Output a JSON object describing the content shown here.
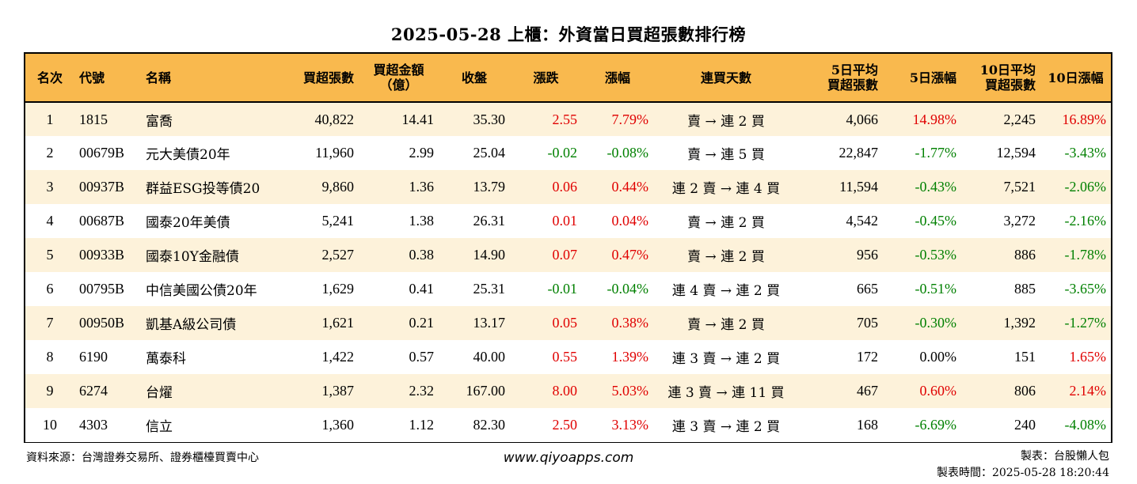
{
  "title": "2025-05-28 上櫃：外資當日買超張數排行榜",
  "colors": {
    "header_bg": "#F9B94E",
    "stripe_bg": "#FDF2DA",
    "up": "#E00000",
    "down": "#008000"
  },
  "columns": [
    {
      "key": "rank",
      "line1": "名次",
      "line2": ""
    },
    {
      "key": "code",
      "line1": "代號",
      "line2": ""
    },
    {
      "key": "name",
      "line1": "名稱",
      "line2": ""
    },
    {
      "key": "net_buy_lots",
      "line1": "買超張數",
      "line2": ""
    },
    {
      "key": "net_buy_amount",
      "line1": "買超金額",
      "line2": "（億）"
    },
    {
      "key": "close",
      "line1": "收盤",
      "line2": ""
    },
    {
      "key": "change",
      "line1": "漲跌",
      "line2": ""
    },
    {
      "key": "change_pct",
      "line1": "漲幅",
      "line2": ""
    },
    {
      "key": "streak",
      "line1": "連買天數",
      "line2": ""
    },
    {
      "key": "avg5_lots",
      "line1": "5日平均",
      "line2": "買超張數"
    },
    {
      "key": "pct5",
      "line1": "5日漲幅",
      "line2": ""
    },
    {
      "key": "avg10_lots",
      "line1": "10日平均",
      "line2": "買超張數"
    },
    {
      "key": "pct10",
      "line1": "10日漲幅",
      "line2": ""
    }
  ],
  "rows": [
    {
      "rank": "1",
      "code": "1815",
      "name": "富喬",
      "net_buy_lots": "40,822",
      "net_buy_amount": "14.41",
      "close": "35.30",
      "change": "2.55",
      "change_pct": "7.79%",
      "streak": "賣 → 連 2 買",
      "avg5_lots": "4,066",
      "pct5": "14.98%",
      "avg10_lots": "2,245",
      "pct10": "16.89%"
    },
    {
      "rank": "2",
      "code": "00679B",
      "name": "元大美債20年",
      "net_buy_lots": "11,960",
      "net_buy_amount": "2.99",
      "close": "25.04",
      "change": "-0.02",
      "change_pct": "-0.08%",
      "streak": "賣 → 連 5 買",
      "avg5_lots": "22,847",
      "pct5": "-1.77%",
      "avg10_lots": "12,594",
      "pct10": "-3.43%"
    },
    {
      "rank": "3",
      "code": "00937B",
      "name": "群益ESG投等債20",
      "net_buy_lots": "9,860",
      "net_buy_amount": "1.36",
      "close": "13.79",
      "change": "0.06",
      "change_pct": "0.44%",
      "streak": "連 2 賣 → 連 4 買",
      "avg5_lots": "11,594",
      "pct5": "-0.43%",
      "avg10_lots": "7,521",
      "pct10": "-2.06%"
    },
    {
      "rank": "4",
      "code": "00687B",
      "name": "國泰20年美債",
      "net_buy_lots": "5,241",
      "net_buy_amount": "1.38",
      "close": "26.31",
      "change": "0.01",
      "change_pct": "0.04%",
      "streak": "賣 → 連 2 買",
      "avg5_lots": "4,542",
      "pct5": "-0.45%",
      "avg10_lots": "3,272",
      "pct10": "-2.16%"
    },
    {
      "rank": "5",
      "code": "00933B",
      "name": "國泰10Y金融債",
      "net_buy_lots": "2,527",
      "net_buy_amount": "0.38",
      "close": "14.90",
      "change": "0.07",
      "change_pct": "0.47%",
      "streak": "賣 → 連 2 買",
      "avg5_lots": "956",
      "pct5": "-0.53%",
      "avg10_lots": "886",
      "pct10": "-1.78%"
    },
    {
      "rank": "6",
      "code": "00795B",
      "name": "中信美國公債20年",
      "net_buy_lots": "1,629",
      "net_buy_amount": "0.41",
      "close": "25.31",
      "change": "-0.01",
      "change_pct": "-0.04%",
      "streak": "連 4 賣 → 連 2 買",
      "avg5_lots": "665",
      "pct5": "-0.51%",
      "avg10_lots": "885",
      "pct10": "-3.65%"
    },
    {
      "rank": "7",
      "code": "00950B",
      "name": "凱基A級公司債",
      "net_buy_lots": "1,621",
      "net_buy_amount": "0.21",
      "close": "13.17",
      "change": "0.05",
      "change_pct": "0.38%",
      "streak": "賣 → 連 2 買",
      "avg5_lots": "705",
      "pct5": "-0.30%",
      "avg10_lots": "1,392",
      "pct10": "-1.27%"
    },
    {
      "rank": "8",
      "code": "6190",
      "name": "萬泰科",
      "net_buy_lots": "1,422",
      "net_buy_amount": "0.57",
      "close": "40.00",
      "change": "0.55",
      "change_pct": "1.39%",
      "streak": "連 3 賣 → 連 2 買",
      "avg5_lots": "172",
      "pct5": "0.00%",
      "avg10_lots": "151",
      "pct10": "1.65%"
    },
    {
      "rank": "9",
      "code": "6274",
      "name": "台燿",
      "net_buy_lots": "1,387",
      "net_buy_amount": "2.32",
      "close": "167.00",
      "change": "8.00",
      "change_pct": "5.03%",
      "streak": "連 3 賣 → 連 11 買",
      "avg5_lots": "467",
      "pct5": "0.60%",
      "avg10_lots": "806",
      "pct10": "2.14%"
    },
    {
      "rank": "10",
      "code": "4303",
      "name": "信立",
      "net_buy_lots": "1,360",
      "net_buy_amount": "1.12",
      "close": "82.30",
      "change": "2.50",
      "change_pct": "3.13%",
      "streak": "連 3 賣 → 連 2 買",
      "avg5_lots": "168",
      "pct5": "-6.69%",
      "avg10_lots": "240",
      "pct10": "-4.08%"
    }
  ],
  "footer": {
    "source": "資料來源：台灣證券交易所、證券櫃檯買賣中心",
    "website": "www.qiyoapps.com",
    "maker": "製表：台股懶人包",
    "made_time": "製表時間：2025-05-28 18:20:44"
  }
}
